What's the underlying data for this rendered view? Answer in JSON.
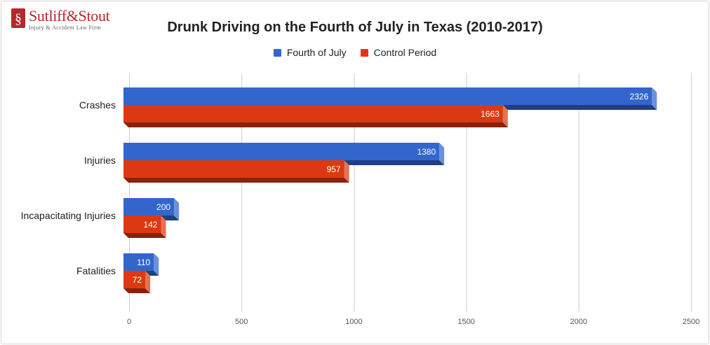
{
  "logo": {
    "name": "Sutliff&Stout",
    "tagline": "Injury & Accident Law Firm",
    "color": "#b4282e"
  },
  "chart_data": {
    "type": "bar",
    "orientation": "horizontal",
    "style": "3d",
    "title": "Drunk Driving on the Fourth of July in Texas (2010-2017)",
    "xlabel": "",
    "ylabel": "",
    "categories": [
      "Crashes",
      "Injuries",
      "Incapacitating Injuries",
      "Fatalities"
    ],
    "series": [
      {
        "name": "Fourth of July",
        "color": "#3366cc",
        "values": [
          2326,
          1380,
          200,
          110
        ]
      },
      {
        "name": "Control Period",
        "color": "#dc3912",
        "values": [
          1663,
          957,
          142,
          72
        ]
      }
    ],
    "xlim": [
      0,
      2500
    ],
    "xticks": [
      0,
      500,
      1000,
      1500,
      2000,
      2500
    ],
    "grid": true,
    "legend": "top-center",
    "data_labels": true
  }
}
